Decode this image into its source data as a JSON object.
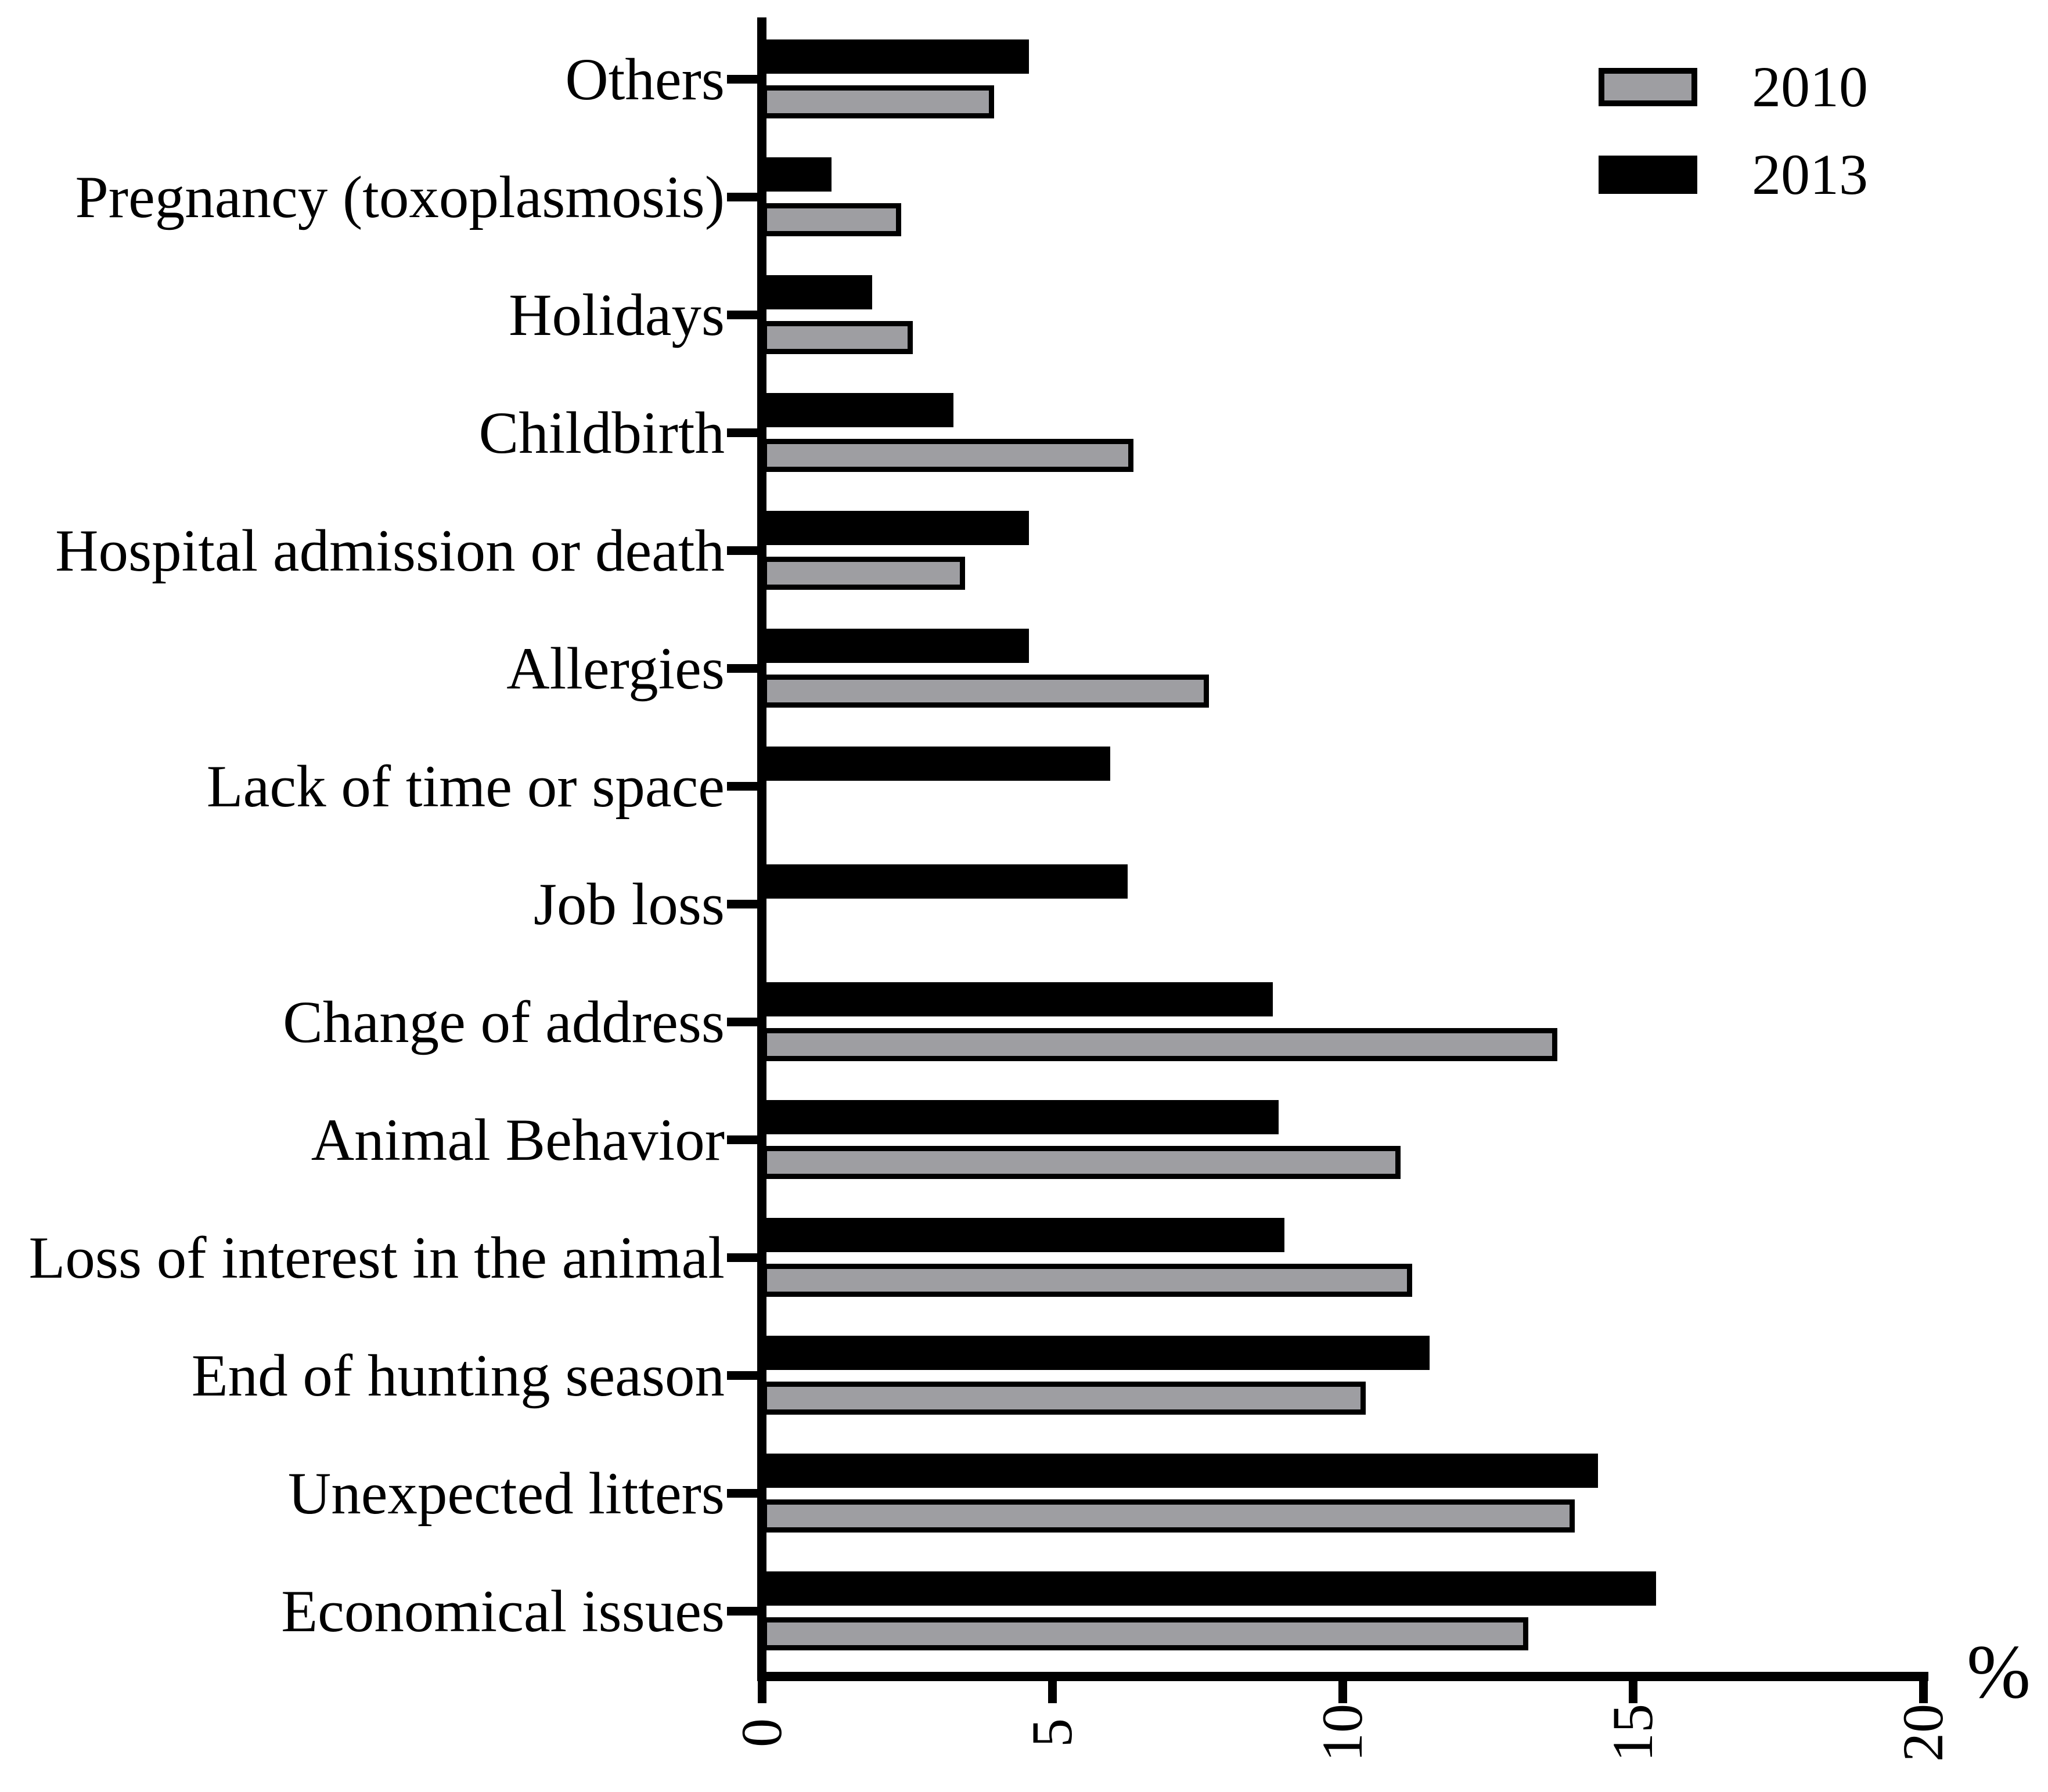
{
  "figure": {
    "background": "#ffffff",
    "accent_black": "#000000",
    "accent_gray": "#9e9ea2"
  },
  "chart_data": {
    "type": "bar",
    "orientation": "horizontal",
    "title": "",
    "xlabel": "%",
    "ylabel": "",
    "xlim": [
      0,
      20
    ],
    "x_ticks": [
      0,
      5,
      10,
      15,
      20
    ],
    "grid": false,
    "legend_position": "top-right",
    "bar_group_order_top_to_bottom": [
      "2013",
      "2010"
    ],
    "categories": [
      "Others",
      "Pregnancy (toxoplasmosis)",
      "Holidays",
      "Childbirth",
      "Hospital admission or death",
      "Allergies",
      "Lack of time or space",
      "Job loss",
      "Change of address",
      "Animal Behavior",
      "Loss of interest in the animal",
      "End of hunting season",
      "Unexpected litters",
      "Economical issues"
    ],
    "series": [
      {
        "name": "2010",
        "color": "#9e9ea2",
        "border_color": "#000000",
        "values": [
          4.0,
          2.4,
          2.6,
          6.4,
          3.5,
          7.7,
          null,
          null,
          13.7,
          11.0,
          11.2,
          10.4,
          14.0,
          13.2
        ]
      },
      {
        "name": "2013",
        "color": "#000000",
        "border_color": "#000000",
        "values": [
          4.6,
          1.2,
          1.9,
          3.3,
          4.6,
          4.6,
          6.0,
          6.3,
          8.8,
          8.9,
          9.0,
          11.5,
          14.4,
          15.4
        ]
      }
    ]
  },
  "x_axis": {
    "tick_labels": [
      "0",
      "5",
      "10",
      "15",
      "20"
    ],
    "unit_label": "%",
    "tick_label_rotation_deg": -90
  },
  "legend": {
    "items": [
      {
        "label": "2010",
        "swatch_color": "#9e9ea2"
      },
      {
        "label": "2013",
        "swatch_color": "#000000"
      }
    ]
  }
}
